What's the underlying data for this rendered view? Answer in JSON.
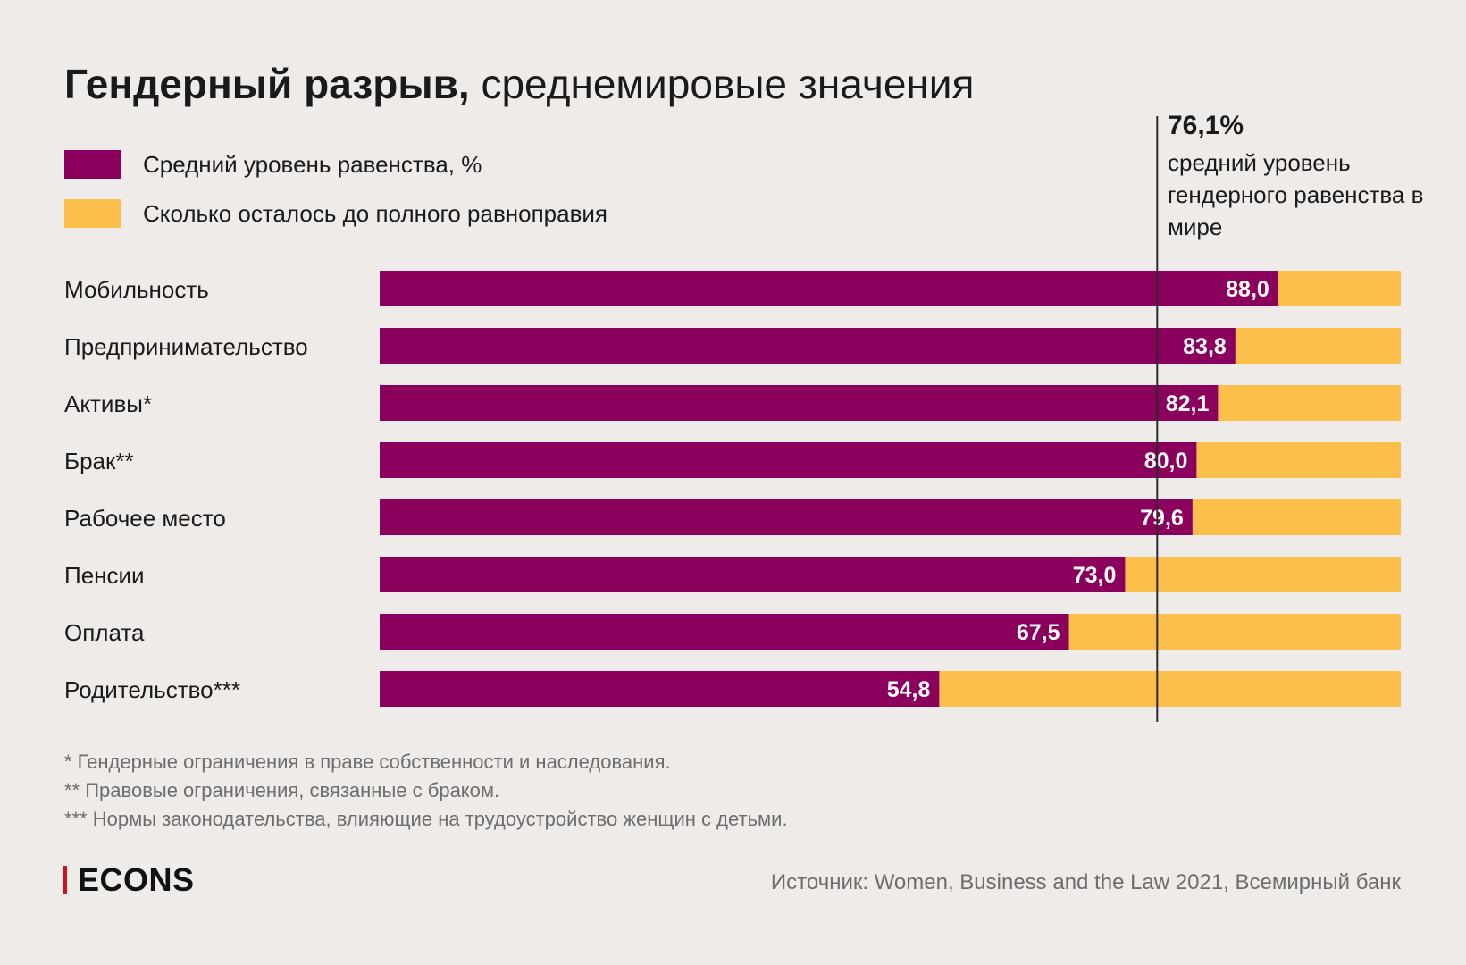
{
  "title": {
    "bold": "Гендерный разрыв,",
    "light": " среднемировые значения"
  },
  "legend": [
    {
      "label": "Средний уровень равенства, %",
      "color": "#8b005d"
    },
    {
      "label": "Сколько осталось до полного равноправия",
      "color": "#fdbf4b"
    }
  ],
  "average": {
    "value": "76,1%",
    "label": "средний уровень гендерного равенства в мире",
    "number": 76.1
  },
  "chart_data": {
    "type": "bar",
    "orientation": "horizontal",
    "stacked": true,
    "categories": [
      "Мобильность",
      "Предпринимательство",
      "Активы*",
      "Брак**",
      "Рабочее место",
      "Пенсии",
      "Оплата",
      "Родительство***"
    ],
    "series": [
      {
        "name": "Средний уровень равенства, %",
        "color": "#8b005d",
        "values": [
          88.0,
          83.8,
          82.1,
          80.0,
          79.6,
          73.0,
          67.5,
          54.8
        ],
        "labels": [
          "88,0",
          "83,8",
          "82,1",
          "80,0",
          "79,6",
          "73,0",
          "67,5",
          "54,8"
        ]
      },
      {
        "name": "Сколько осталось до полного равноправия",
        "color": "#fdbf4b",
        "values": [
          12.0,
          16.2,
          17.9,
          20.0,
          20.4,
          27.0,
          32.5,
          45.2
        ]
      }
    ],
    "xlim": [
      0,
      100
    ],
    "reference_line": 76.1,
    "grid": false,
    "legend_position": "top-left"
  },
  "footnotes": [
    "* Гендерные ограничения в праве собственности и наследования.",
    "** Правовые ограничения, связанные с браком.",
    "*** Нормы законодательства, влияющие на трудоустройство женщин с детьми."
  ],
  "logo": "ECONS",
  "logo_color": "#d3111a",
  "source": "Источник: Women, Business and the Law 2021, Всемирный банк"
}
